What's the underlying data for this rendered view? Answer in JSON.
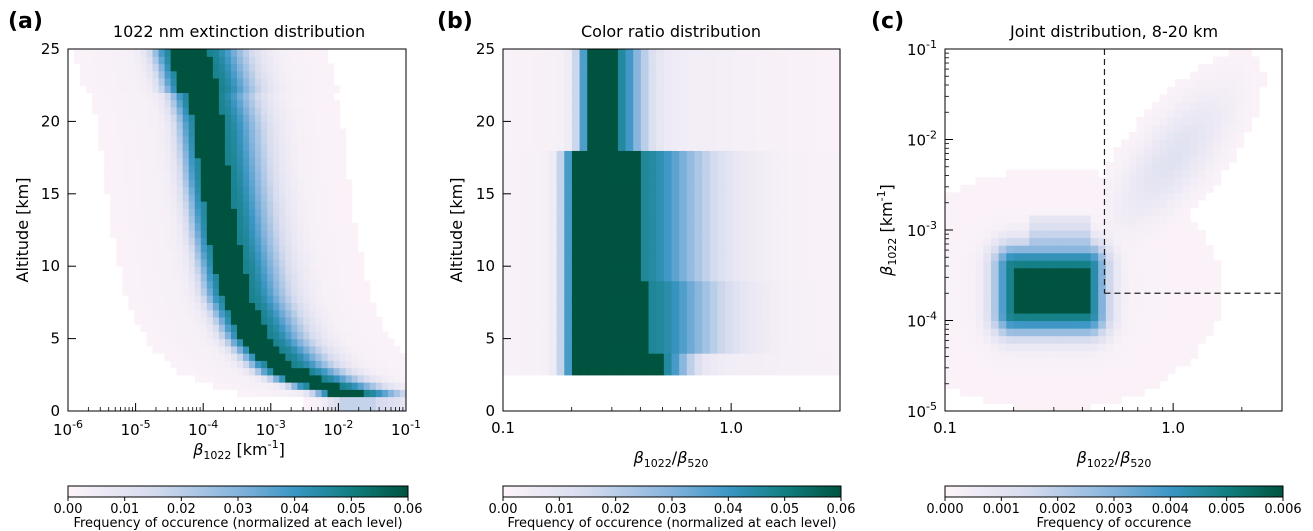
{
  "chart_data": [
    {
      "type": "heatmap",
      "panel": "(a)",
      "title": "1022 nm extinction distribution",
      "xlabel_base": "β",
      "xlabel_sub": "1022",
      "xlabel_unit": "[km",
      "xlabel_sup": "-1",
      "xlabel_close": "]",
      "ylabel": "Altitude [km]",
      "x_scale": "log",
      "xlim": [
        1e-06,
        0.1
      ],
      "ylim": [
        0,
        25
      ],
      "x_ticks": [
        {
          "base": "10",
          "exp": "-6"
        },
        {
          "base": "10",
          "exp": "-5"
        },
        {
          "base": "10",
          "exp": "-4"
        },
        {
          "base": "10",
          "exp": "-3"
        },
        {
          "base": "10",
          "exp": "-2"
        },
        {
          "base": "10",
          "exp": "-1"
        }
      ],
      "y_ticks": [
        "0",
        "5",
        "10",
        "15",
        "20",
        "25"
      ],
      "ridge": [
        {
          "alt": 1,
          "x": 0.02
        },
        {
          "alt": 2,
          "x": 0.004
        },
        {
          "alt": 3,
          "x": 0.0015
        },
        {
          "alt": 5,
          "x": 0.0006
        },
        {
          "alt": 8,
          "x": 0.0003
        },
        {
          "alt": 12,
          "x": 0.0002
        },
        {
          "alt": 16,
          "x": 0.00015
        },
        {
          "alt": 20,
          "x": 0.00012
        },
        {
          "alt": 25,
          "x": 6e-05
        }
      ],
      "colorbar": {
        "range": [
          0,
          0.06
        ],
        "ticks": [
          "0.00",
          "0.01",
          "0.02",
          "0.03",
          "0.04",
          "0.05",
          "0.06"
        ],
        "label": "Frequency of occurence (normalized at each level)"
      }
    },
    {
      "type": "heatmap",
      "panel": "(b)",
      "title": "Color ratio distribution",
      "xlabel_num": "β",
      "xlabel_num_sub": "1022",
      "xlabel_slash": "/",
      "xlabel_den": "β",
      "xlabel_den_sub": "520",
      "ylabel": "Altitude [km]",
      "x_scale": "log",
      "xlim": [
        0.1,
        3
      ],
      "ylim": [
        0,
        25
      ],
      "x_ticks": [
        "0.1",
        "1.0"
      ],
      "y_ticks": [
        "0",
        "5",
        "10",
        "15",
        "20",
        "25"
      ],
      "core_band": {
        "x": [
          0.2,
          0.5
        ],
        "alt": [
          2.5,
          25
        ]
      },
      "colorbar": {
        "range": [
          0,
          0.06
        ],
        "ticks": [
          "0.00",
          "0.01",
          "0.02",
          "0.03",
          "0.04",
          "0.05",
          "0.06"
        ],
        "label": "Frequency of occurence (normalized at each level)"
      }
    },
    {
      "type": "heatmap",
      "panel": "(c)",
      "title": "Joint distribution, 8-20 km",
      "xlabel_num": "β",
      "xlabel_num_sub": "1022",
      "xlabel_slash": "/",
      "xlabel_den": "β",
      "xlabel_den_sub": "520",
      "ylabel_base": "β",
      "ylabel_sub": "1022",
      "ylabel_unit": "[km",
      "ylabel_sup": "-1",
      "ylabel_close": "]",
      "x_scale": "log",
      "xlim": [
        0.1,
        3
      ],
      "y_scale": "log",
      "ylim": [
        1e-05,
        0.1
      ],
      "x_ticks": [
        "0.1",
        "1.0"
      ],
      "y_ticks": [
        {
          "base": "10",
          "exp": "-5"
        },
        {
          "base": "10",
          "exp": "-4"
        },
        {
          "base": "10",
          "exp": "-3"
        },
        {
          "base": "10",
          "exp": "-2"
        },
        {
          "base": "10",
          "exp": "-1"
        }
      ],
      "core": {
        "x": [
          0.2,
          0.42
        ],
        "y": [
          0.00012,
          0.0004
        ]
      },
      "dashed_threshold": {
        "x": 0.5,
        "y": 0.0002
      },
      "colorbar": {
        "range": [
          0,
          0.006
        ],
        "ticks": [
          "0.000",
          "0.001",
          "0.002",
          "0.003",
          "0.004",
          "0.005",
          "0.006"
        ],
        "label": "Frequency of occurence"
      }
    }
  ]
}
